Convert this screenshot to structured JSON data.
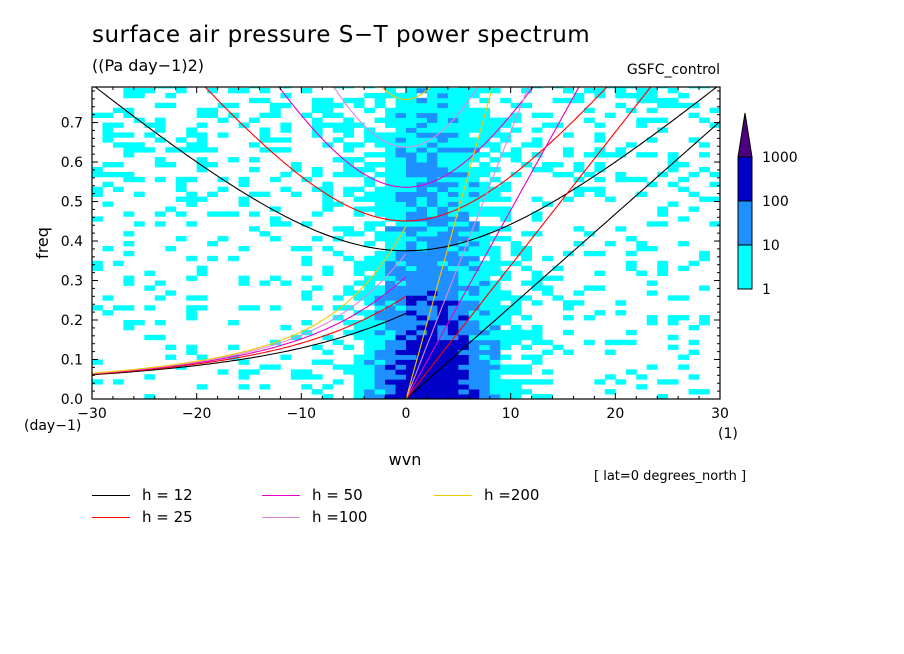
{
  "header": {
    "title": "surface air pressure S−T power spectrum",
    "units": "((Pa day−1)2)",
    "run": "GSFC_control",
    "lat_note": "[ lat=0 degrees_north ]"
  },
  "chart_data": {
    "type": "heatmap",
    "xlabel": "wvn",
    "ylabel": "freq",
    "x_unit": "(1)",
    "y_unit": "(day−1)",
    "xlim": [
      -30,
      30
    ],
    "ylim": [
      0,
      0.79
    ],
    "x_ticks": [
      -30,
      -20,
      -10,
      0,
      10,
      20,
      30
    ],
    "x_tick_labels": [
      "−30",
      "−20",
      "−10",
      "0",
      "10",
      "20",
      "30"
    ],
    "y_ticks": [
      0,
      0.1,
      0.2,
      0.3,
      0.4,
      0.5,
      0.6,
      0.7
    ],
    "y_tick_labels": [
      "0.0",
      "0.1",
      "0.2",
      "0.3",
      "0.4",
      "0.5",
      "0.6",
      "0.7"
    ],
    "colorbar": {
      "levels": [
        1,
        10,
        100,
        1000
      ],
      "labels": [
        "1",
        "10",
        "100",
        "1000"
      ],
      "colors": [
        "#00ffff",
        "#1e90ff",
        "#0000c8",
        "#4b0082"
      ]
    },
    "dispersion_curves": [
      {
        "name": "h = 12",
        "h": 12,
        "color": "#000000"
      },
      {
        "name": "h = 25",
        "h": 25,
        "color": "#ff0000"
      },
      {
        "name": "h = 50",
        "h": 50,
        "color": "#e600c8"
      },
      {
        "name": "h =100",
        "h": 100,
        "color": "#dd88dd"
      },
      {
        "name": "h =200",
        "h": 200,
        "color": "#f0c800"
      }
    ]
  }
}
